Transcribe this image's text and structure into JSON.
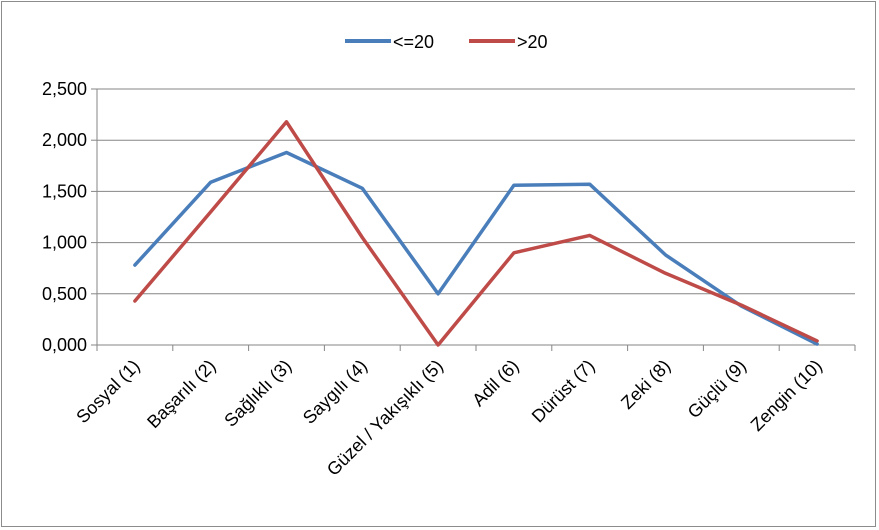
{
  "chart_data": {
    "type": "line",
    "title": "",
    "xlabel": "",
    "ylabel": "",
    "categories": [
      "Sosyal (1)",
      "Başarılı (2)",
      "Sağlıklı (3)",
      "Saygılı (4)",
      "Güzel / Yakışıklı (5)",
      "Adil (6)",
      "Dürüst (7)",
      "Zeki (8)",
      "Güçlü (9)",
      "Zengin (10)"
    ],
    "series": [
      {
        "name": "<=20",
        "color": "#4a7ebb",
        "values": [
          0.78,
          1.59,
          1.88,
          1.53,
          0.5,
          1.56,
          1.57,
          0.88,
          0.38,
          0.01
        ]
      },
      {
        "name": ">20",
        "color": "#be4b48",
        "values": [
          0.43,
          1.3,
          2.18,
          1.05,
          0.0,
          0.9,
          1.07,
          0.7,
          0.39,
          0.04
        ]
      }
    ],
    "ylim": [
      0,
      2.5
    ],
    "yticks": [
      "0,000",
      "0,500",
      "1,000",
      "1,500",
      "2,000",
      "2,500"
    ],
    "grid": true,
    "legend": "top-center"
  }
}
